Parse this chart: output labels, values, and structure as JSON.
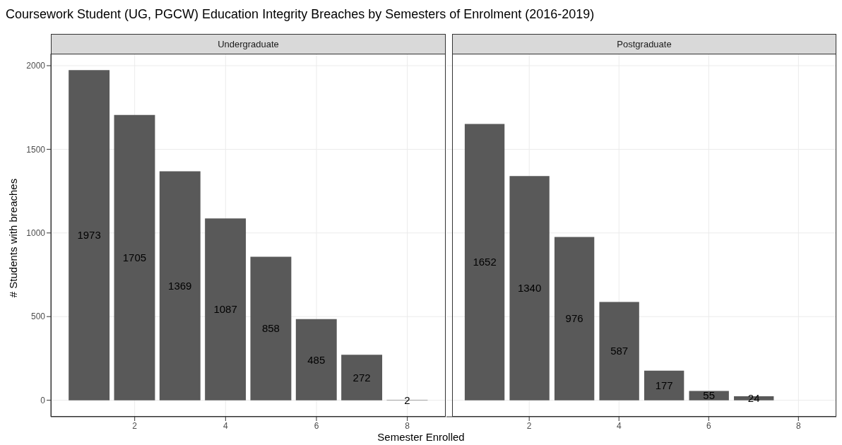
{
  "chart_data": [
    {
      "type": "bar",
      "title": "Coursework Student (UG, PGCW) Education Integrity Breaches by Semesters of Enrolment (2016-2019)",
      "subtitle": "Undergraduate",
      "xlabel": "Semester Enrolled",
      "ylabel": "# Students with breaches",
      "x": [
        1,
        2,
        3,
        4,
        5,
        6,
        7,
        8
      ],
      "values": [
        1973,
        1705,
        1369,
        1087,
        858,
        485,
        272,
        2
      ],
      "color": "#595959",
      "data_labels": true,
      "xlim": [
        0.155,
        8.845
      ],
      "xticks": [
        2,
        4,
        6,
        8
      ],
      "ylim": [
        -98.65,
        2071.65
      ],
      "yticks": [
        0,
        500,
        1000,
        1500,
        2000
      ],
      "grid": true
    },
    {
      "type": "bar",
      "subtitle": "Postgraduate",
      "x": [
        1,
        2,
        3,
        4,
        5,
        6,
        7
      ],
      "values": [
        1652,
        1340,
        976,
        587,
        177,
        55,
        24
      ],
      "color": "#595959",
      "data_labels": true,
      "xlim": [
        0.155,
        8.845
      ],
      "xticks": [
        2,
        4,
        6,
        8
      ],
      "ylim": [
        -98.65,
        2071.65
      ],
      "yticks": [
        0,
        500,
        1000,
        1500,
        2000
      ],
      "grid": true,
      "tick_labels": "x"
    }
  ]
}
